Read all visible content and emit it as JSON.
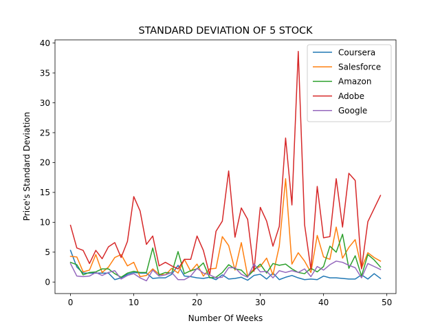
{
  "chart_data": {
    "type": "line",
    "title": "STANDARD DEVIATION OF 5 STOCK",
    "xlabel": "Number Of Weeks",
    "ylabel": "Price's Standard Deviation",
    "xlim": [
      -2.45,
      51.45
    ],
    "ylim": [
      -1.93,
      40.53
    ],
    "xticks": [
      0,
      10,
      20,
      30,
      40,
      50
    ],
    "yticks": [
      0,
      5,
      10,
      15,
      20,
      25,
      30,
      35,
      40
    ],
    "grid": false,
    "legend_position": "top-right",
    "x": [
      0,
      1,
      2,
      3,
      4,
      5,
      6,
      7,
      8,
      9,
      10,
      11,
      12,
      13,
      14,
      15,
      16,
      17,
      18,
      19,
      20,
      21,
      22,
      23,
      24,
      25,
      26,
      27,
      28,
      29,
      30,
      31,
      32,
      33,
      34,
      35,
      36,
      37,
      38,
      39,
      40,
      41,
      42,
      43,
      44,
      45,
      46,
      47,
      48,
      49
    ],
    "series": [
      {
        "name": "Coursera",
        "color": "#1f77b4",
        "values": [
          5.3,
          2.5,
          1.5,
          1.5,
          1.5,
          1.5,
          1.5,
          0.4,
          0.7,
          1.3,
          1.6,
          1.5,
          1.5,
          0.6,
          0.7,
          0.7,
          1.3,
          2.8,
          1.0,
          0.9,
          0.7,
          0.6,
          0.8,
          0.4,
          1.2,
          0.5,
          0.6,
          0.8,
          0.3,
          1.1,
          1.3,
          0.5,
          1.5,
          0.4,
          0.8,
          1.1,
          0.7,
          0.4,
          0.5,
          0.4,
          1.0,
          0.7,
          0.7,
          0.6,
          0.5,
          0.5,
          1.2,
          0.5,
          1.4,
          0.6
        ]
      },
      {
        "name": "Salesforce",
        "color": "#ff7f0e",
        "values": [
          4.3,
          4.2,
          1.7,
          2.0,
          4.6,
          1.6,
          2.5,
          4.1,
          4.6,
          2.7,
          3.3,
          0.9,
          1.1,
          2.2,
          1.3,
          1.2,
          2.3,
          1.5,
          3.8,
          1.8,
          3.0,
          1.0,
          2.2,
          2.3,
          7.6,
          6.1,
          2.0,
          6.6,
          1.0,
          2.2,
          2.6,
          4.0,
          1.2,
          6.0,
          17.3,
          3.0,
          4.9,
          3.5,
          1.6,
          7.8,
          4.2,
          3.8,
          9.2,
          4.0,
          5.8,
          7.1,
          2.3,
          4.9,
          4.1,
          3.5
        ]
      },
      {
        "name": "Amazon",
        "color": "#2ca02c",
        "values": [
          3.3,
          2.9,
          1.2,
          1.6,
          1.7,
          2.2,
          2.2,
          1.4,
          0.8,
          1.5,
          1.8,
          1.6,
          1.6,
          5.7,
          1.2,
          1.6,
          1.5,
          5.1,
          1.4,
          1.9,
          2.2,
          3.2,
          0.7,
          0.8,
          1.6,
          2.9,
          2.2,
          2.0,
          0.9,
          2.0,
          3.0,
          1.5,
          3.1,
          2.8,
          3.0,
          2.2,
          1.6,
          1.4,
          2.3,
          1.7,
          2.6,
          6.0,
          5.0,
          8.0,
          2.3,
          4.4,
          1.0,
          4.6,
          3.7,
          2.5
        ]
      },
      {
        "name": "Adobe",
        "color": "#d62728",
        "values": [
          9.5,
          5.7,
          5.3,
          3.1,
          5.3,
          3.9,
          5.9,
          6.6,
          4.1,
          6.8,
          14.3,
          11.9,
          6.3,
          7.7,
          2.7,
          3.3,
          2.7,
          2.2,
          3.8,
          3.8,
          7.7,
          5.3,
          1.2,
          8.5,
          10.2,
          18.6,
          7.5,
          12.4,
          10.5,
          1.8,
          12.5,
          10.2,
          6.0,
          9.3,
          24.1,
          12.9,
          38.6,
          9.6,
          2.1,
          16.0,
          7.4,
          7.6,
          17.3,
          9.2,
          18.2,
          17.0,
          2.2,
          10.1,
          12.3,
          14.5
        ]
      },
      {
        "name": "Google",
        "color": "#9467bd",
        "values": [
          3.1,
          1.0,
          0.9,
          1.0,
          1.6,
          1.1,
          1.6,
          1.9,
          0.5,
          1.1,
          1.4,
          0.7,
          0.2,
          2.0,
          1.0,
          1.2,
          1.6,
          0.4,
          0.4,
          1.0,
          2.3,
          1.5,
          1.2,
          0.7,
          0.8,
          2.4,
          2.4,
          1.3,
          0.8,
          3.0,
          1.7,
          1.8,
          0.7,
          1.9,
          1.6,
          1.9,
          1.6,
          2.2,
          0.9,
          2.6,
          2.0,
          2.9,
          3.5,
          3.3,
          2.8,
          2.4,
          0.7,
          3.1,
          2.6,
          2.1
        ]
      }
    ]
  }
}
